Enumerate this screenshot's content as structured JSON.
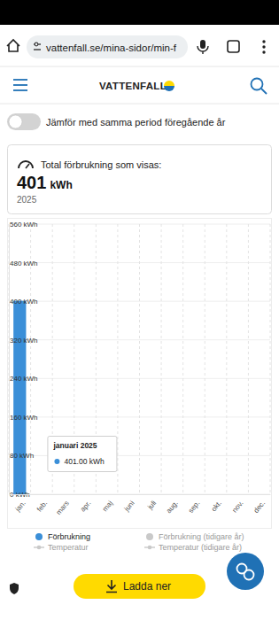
{
  "browser": {
    "url": "vattenfall.se/mina-sidor/min-f"
  },
  "header": {
    "logo": "VATTENFALL"
  },
  "toggle": {
    "label": "Jämför med samma period föregående år",
    "on": false
  },
  "summary": {
    "label": "Total förbrukning som visas:",
    "value": 401,
    "unit": "kWh",
    "year": "2025"
  },
  "chart_data": {
    "type": "bar",
    "categories": [
      "jan.",
      "feb.",
      "mars",
      "apr.",
      "maj",
      "juni",
      "juli",
      "aug.",
      "sep.",
      "okt.",
      "nov.",
      "dec."
    ],
    "series": [
      {
        "name": "Förbrukning",
        "type": "bar",
        "color": "#3b8fd8",
        "values": [
          401,
          null,
          null,
          null,
          null,
          null,
          null,
          null,
          null,
          null,
          null,
          null
        ]
      },
      {
        "name": "Förbrukning (tidigare år)",
        "type": "bar",
        "color": "#c9c9c9",
        "values": [
          null,
          null,
          null,
          null,
          null,
          null,
          null,
          null,
          null,
          null,
          null,
          null
        ]
      },
      {
        "name": "Temperatur",
        "type": "line",
        "color": "#c9c9c9",
        "marker": "circle",
        "values": [
          null,
          null,
          null,
          null,
          null,
          null,
          null,
          null,
          null,
          null,
          null,
          null
        ]
      },
      {
        "name": "Temperatur (tidigare år)",
        "type": "line",
        "color": "#c9c9c9",
        "marker": "circle",
        "values": [
          null,
          null,
          null,
          null,
          null,
          null,
          null,
          null,
          null,
          null,
          null,
          null
        ]
      }
    ],
    "ylim": [
      0,
      560
    ],
    "yticks": [
      {
        "value": 0,
        "label": "0 kWh"
      },
      {
        "value": 80,
        "label": "80 kWh"
      },
      {
        "value": 160,
        "label": "160 kWh"
      },
      {
        "value": 240,
        "label": "240 kWh"
      },
      {
        "value": 320,
        "label": "320 kWh"
      },
      {
        "value": 400,
        "label": "400 kWh"
      },
      {
        "value": 480,
        "label": "480 kWh"
      },
      {
        "value": 560,
        "label": "560 kWh"
      }
    ],
    "grid": true,
    "annotations": [
      {
        "title": "januari 2025",
        "text": "401.00 kWh"
      }
    ]
  },
  "button": {
    "label": "Ladda ner"
  }
}
